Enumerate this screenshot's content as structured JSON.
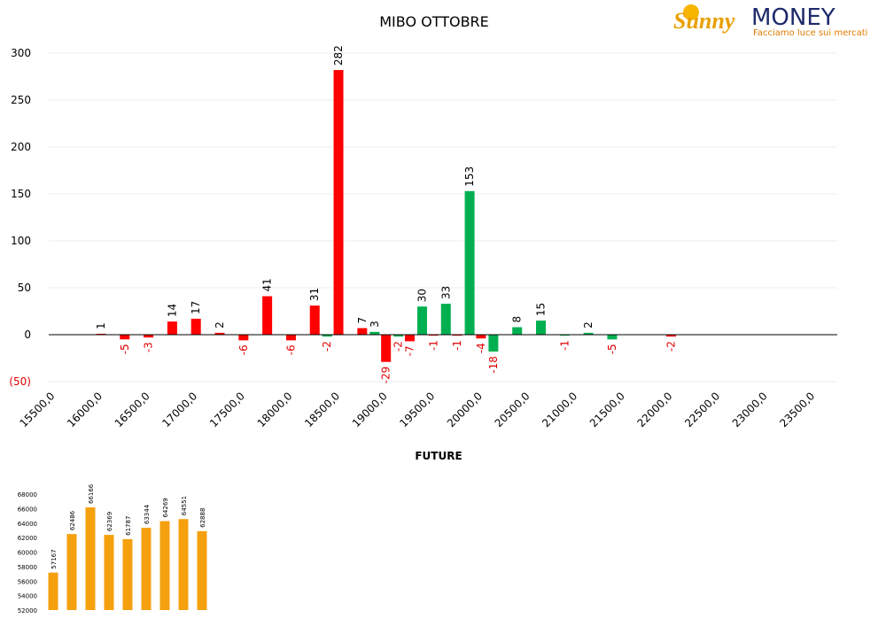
{
  "logo": {
    "brand": "Sunny",
    "brand2": "MONEY",
    "tagline": "Facciamo luce sui mercati"
  },
  "chart_data": [
    {
      "type": "bar",
      "title": "MIBO OTTOBRE",
      "x": [
        16000,
        16250,
        16500,
        16750,
        17000,
        17250,
        17500,
        17750,
        18000,
        18250,
        18500,
        18750,
        19000,
        19250,
        19500,
        19750,
        20000,
        20250,
        20500,
        20750,
        21000,
        21250,
        21500,
        21750,
        22000
      ],
      "series": [
        {
          "color": "#ff0000",
          "values": [
            1,
            -5,
            -3,
            14,
            17,
            2,
            -6,
            41,
            -6,
            31,
            282,
            7,
            -29,
            -7,
            -1,
            -1,
            -4,
            null,
            null,
            null,
            null,
            null,
            null,
            null,
            -2
          ]
        },
        {
          "color": "#00b050",
          "values": [
            null,
            null,
            null,
            null,
            null,
            null,
            null,
            null,
            null,
            -2,
            null,
            3,
            -2,
            30,
            33,
            153,
            -18,
            8,
            15,
            -1,
            2,
            -5,
            null,
            null,
            null
          ]
        }
      ],
      "xlim": [
        15450,
        23750
      ],
      "xticks": [
        {
          "value": 15500,
          "label": "15500,0"
        },
        {
          "value": 16000,
          "label": "16000,0"
        },
        {
          "value": 16500,
          "label": "16500,0"
        },
        {
          "value": 17000,
          "label": "17000,0"
        },
        {
          "value": 17500,
          "label": "17500,0"
        },
        {
          "value": 18000,
          "label": "18000,0"
        },
        {
          "value": 18500,
          "label": "18500,0"
        },
        {
          "value": 19000,
          "label": "19000,0"
        },
        {
          "value": 19500,
          "label": "19500,0"
        },
        {
          "value": 20000,
          "label": "20000,0"
        },
        {
          "value": 20500,
          "label": "20500,0"
        },
        {
          "value": 21000,
          "label": "21000,0"
        },
        {
          "value": 21500,
          "label": "21500,0"
        },
        {
          "value": 22000,
          "label": "22000,0"
        },
        {
          "value": 22500,
          "label": "22500,0"
        },
        {
          "value": 23000,
          "label": "23000,0"
        },
        {
          "value": 23500,
          "label": "23500,0"
        }
      ],
      "ylim": [
        -50,
        300
      ],
      "yticks": [
        {
          "value": -50,
          "label": "(50)"
        },
        0,
        50,
        100,
        150,
        200,
        250,
        300
      ],
      "grid": true
    },
    {
      "type": "bar",
      "title": "FUTURE",
      "color": "#f5a00f",
      "categories": [
        null,
        null,
        null,
        null,
        null,
        null,
        null,
        null,
        null
      ],
      "values": [
        57167,
        62486,
        66166,
        62369,
        61787,
        63344,
        64269,
        64551,
        62888
      ],
      "ylim": [
        52000,
        68000
      ],
      "yticks": [
        52000,
        54000,
        56000,
        58000,
        60000,
        62000,
        64000,
        66000,
        68000
      ]
    }
  ]
}
